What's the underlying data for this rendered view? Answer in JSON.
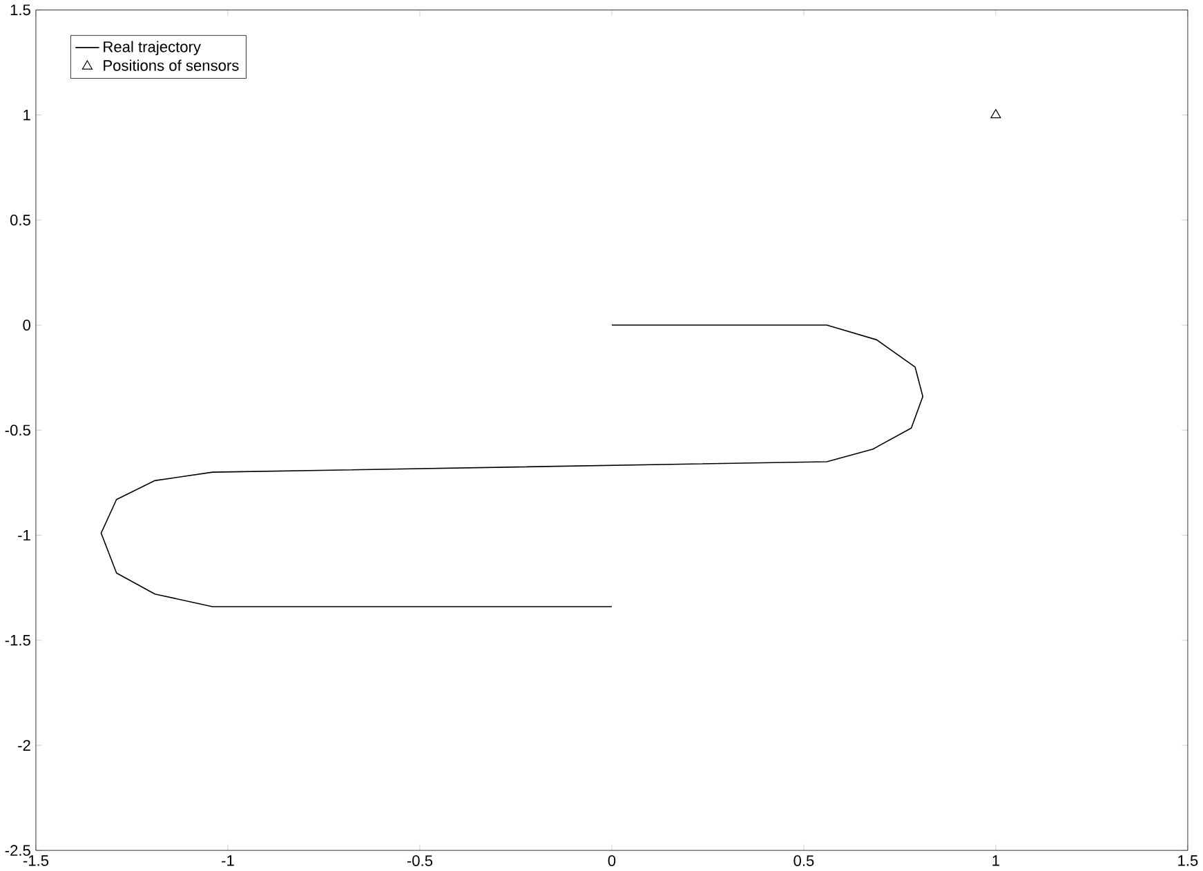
{
  "chart_data": {
    "type": "line",
    "xlim": [
      -1.5,
      1.5
    ],
    "ylim": [
      -2.5,
      1.5
    ],
    "xticks": [
      -1.5,
      -1,
      -0.5,
      0,
      0.5,
      1,
      1.5
    ],
    "yticks": [
      -2.5,
      -2,
      -1.5,
      -1,
      -0.5,
      0,
      0.5,
      1,
      1.5
    ],
    "legend": "top left",
    "grid": false,
    "series": [
      {
        "name": "Real trajectory",
        "color": "#000000",
        "x": [
          0,
          0.56,
          0.69,
          0.79,
          0.81,
          0.78,
          0.68,
          0.56,
          -1.04,
          -1.19,
          -1.29,
          -1.33,
          -1.29,
          -1.19,
          -1.04,
          0
        ],
        "values": [
          0,
          0,
          -0.07,
          -0.2,
          -0.34,
          -0.49,
          -0.59,
          -0.65,
          -0.7,
          -0.74,
          -0.83,
          -0.99,
          -1.18,
          -1.28,
          -1.34,
          -1.34
        ]
      },
      {
        "name": "Positions of sensors",
        "type": "scatter",
        "marker": "triangle",
        "color": "#000000",
        "x": [
          1
        ],
        "values": [
          1
        ]
      }
    ]
  }
}
